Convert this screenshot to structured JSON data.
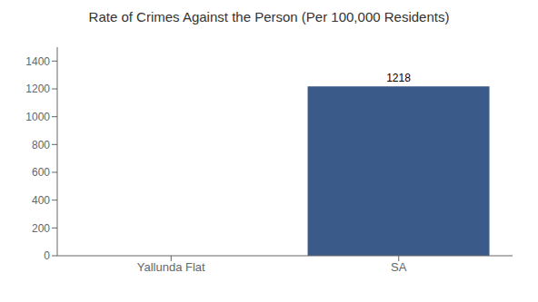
{
  "chart_data": {
    "type": "bar",
    "title": "Rate of Crimes Against the Person (Per 100,000 Residents)",
    "categories": [
      "Yallunda Flat",
      "SA"
    ],
    "values": [
      0,
      1218
    ],
    "color": "#3a5a8a",
    "ylim": [
      0,
      1500
    ],
    "yticks": [
      0,
      200,
      400,
      600,
      800,
      1000,
      1200,
      1400
    ],
    "grid": false,
    "data_labels": true
  }
}
